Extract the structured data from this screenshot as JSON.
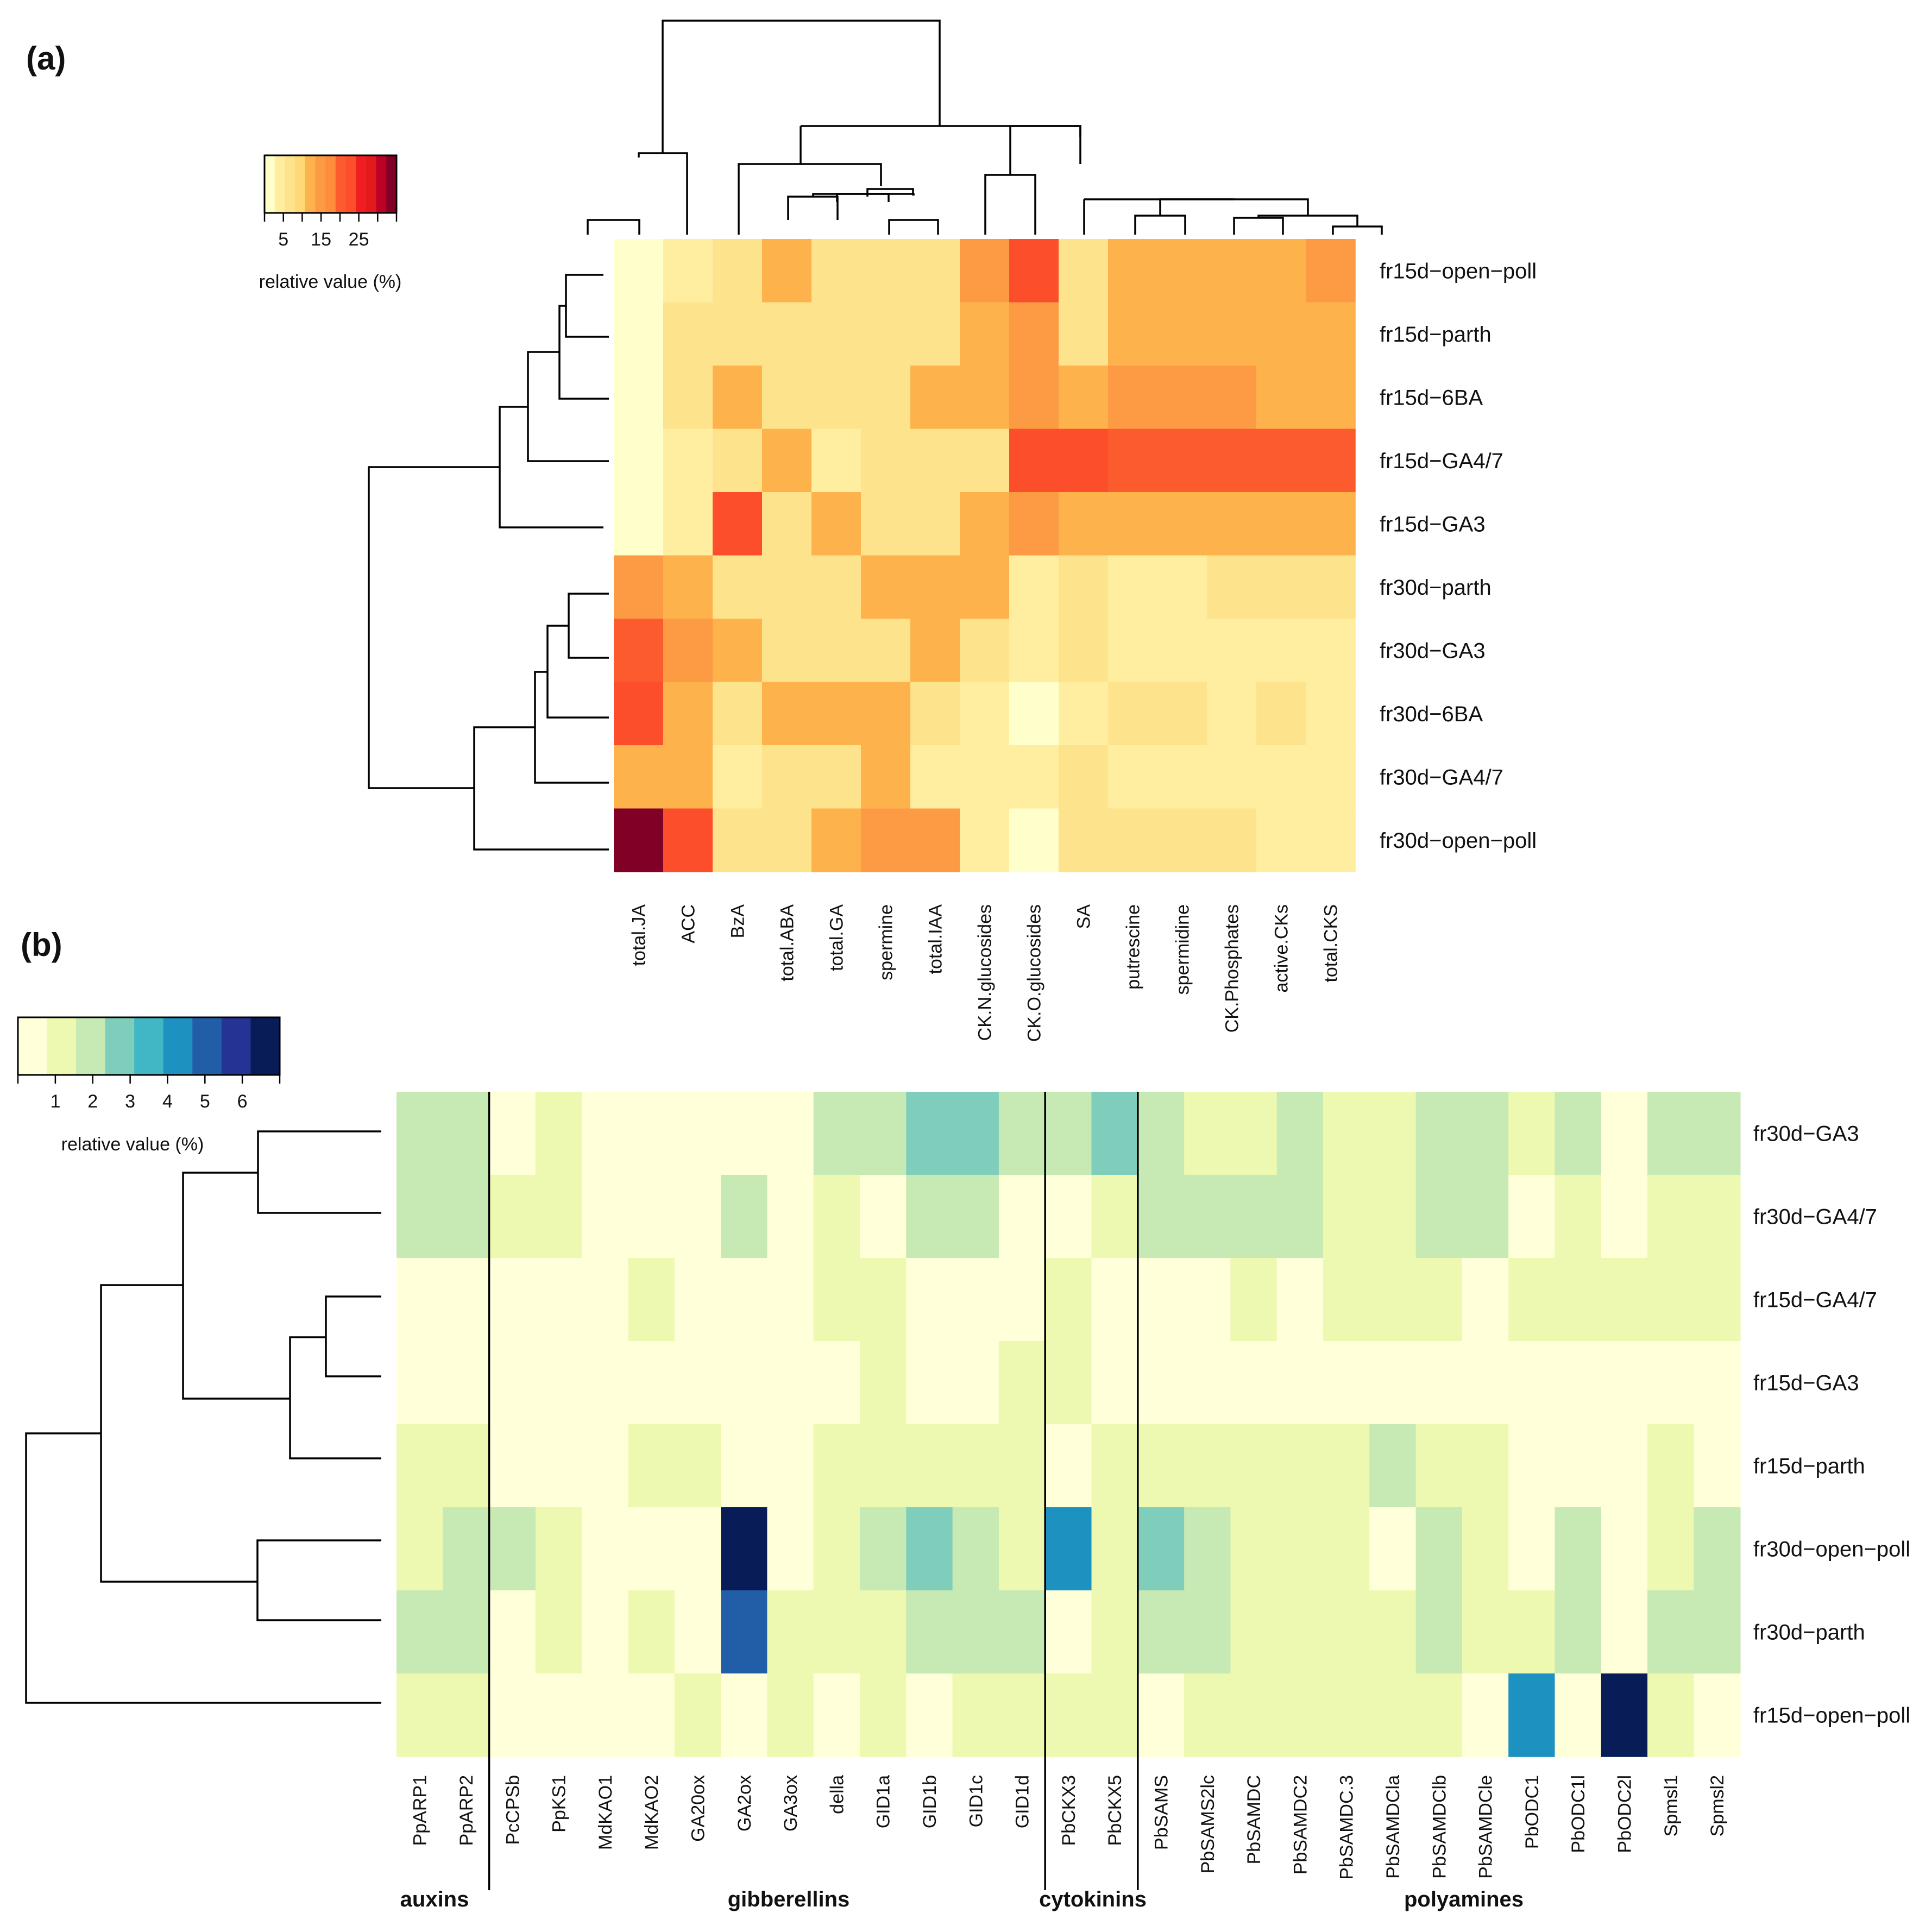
{
  "chart_data": [
    {
      "type": "heatmap",
      "panel_label": "(a)",
      "rows": [
        "fr15d−open−poll",
        "fr15d−parth",
        "fr15d−6BA",
        "fr15d−GA4/7",
        "fr15d−GA3",
        "fr30d−parth",
        "fr30d−GA3",
        "fr30d−6BA",
        "fr30d−GA4/7",
        "fr30d−open−poll"
      ],
      "columns": [
        "total.JA",
        "ACC",
        "BzA",
        "total.ABA",
        "total.GA",
        "spermine",
        "total.IAA",
        "CK.N.glucosides",
        "CK.O.glucosides",
        "SA",
        "putrescine",
        "spermidine",
        "CK.Phosphates",
        "active.CKs",
        "total.CKS"
      ],
      "values": [
        [
          1,
          5,
          8,
          12,
          8,
          8,
          8,
          16,
          22,
          8,
          12,
          12,
          12,
          12,
          16
        ],
        [
          1,
          8,
          8,
          8,
          8,
          8,
          8,
          12,
          16,
          8,
          12,
          12,
          12,
          12,
          12
        ],
        [
          1,
          8,
          12,
          8,
          8,
          8,
          12,
          12,
          16,
          12,
          16,
          16,
          16,
          12,
          12
        ],
        [
          1,
          5,
          8,
          12,
          3,
          8,
          8,
          8,
          22,
          22,
          19,
          19,
          19,
          19,
          19
        ],
        [
          1,
          5,
          24,
          8,
          12,
          8,
          8,
          12,
          16,
          12,
          12,
          12,
          12,
          12,
          12
        ],
        [
          16,
          12,
          8,
          8,
          8,
          12,
          12,
          12,
          5,
          8,
          5,
          5,
          8,
          8,
          8
        ],
        [
          19,
          16,
          12,
          8,
          8,
          8,
          12,
          8,
          5,
          8,
          5,
          5,
          5,
          5,
          5
        ],
        [
          24,
          12,
          8,
          12,
          12,
          12,
          8,
          5,
          1,
          5,
          8,
          8,
          5,
          8,
          5
        ],
        [
          12,
          12,
          5,
          8,
          8,
          12,
          5,
          5,
          5,
          8,
          5,
          5,
          5,
          5,
          5
        ],
        [
          33,
          22,
          8,
          8,
          12,
          16,
          16,
          5,
          1,
          8,
          8,
          8,
          8,
          5,
          5
        ]
      ],
      "legend": {
        "title": "relative value (%)",
        "ticks": [
          "5",
          "15",
          "25"
        ],
        "tick_values": [
          5,
          15,
          25
        ],
        "range": [
          0,
          35
        ]
      },
      "colors": [
        "#ffffcc",
        "#ffeda0",
        "#fee38d",
        "#fed976",
        "#feb24c",
        "#fd9a44",
        "#fd8d3c",
        "#fc5b2e",
        "#fc4e2a",
        "#f01e20",
        "#e31a1c",
        "#bd0026",
        "#800026"
      ]
    },
    {
      "type": "heatmap",
      "panel_label": "(b)",
      "rows": [
        "fr30d−GA3",
        "fr30d−GA4/7",
        "fr15d−GA4/7",
        "fr15d−GA3",
        "fr15d−parth",
        "fr30d−open−poll",
        "fr30d−parth",
        "fr15d−open−poll"
      ],
      "columns": [
        "PpARP1",
        "PpARP2",
        "PcCPSb",
        "PpKS1",
        "MdKAO1",
        "MdKAO2",
        "GA20ox",
        "GA2ox",
        "GA3ox",
        "della",
        "GID1a",
        "GID1b",
        "GID1c",
        "GID1d",
        "PbCKX3",
        "PbCKX5",
        "PbSAMS",
        "PbSAMS2lc",
        "PbSAMDC",
        "PbSAMDC2",
        "PbSAMDC.3",
        "PbSAMDCla",
        "PbSAMDClb",
        "PbSAMDCle",
        "PbODC1",
        "PbODC1l",
        "PbODC2l",
        "Spmsl1",
        "Spmsl2"
      ],
      "values": [
        [
          2,
          2,
          0.5,
          1,
          0.5,
          0.5,
          0.5,
          0.5,
          0.5,
          2,
          2,
          3,
          3,
          2,
          2,
          3,
          2,
          1,
          1,
          2,
          1,
          1,
          2,
          2,
          1,
          2,
          0.5,
          2,
          2
        ],
        [
          2,
          2,
          1,
          1,
          0.5,
          0.5,
          0.5,
          2,
          0.5,
          1,
          0.5,
          2,
          2,
          0.5,
          0.5,
          1,
          2,
          2,
          2,
          2,
          1,
          1,
          2,
          2,
          0.5,
          1,
          0.5,
          1,
          1
        ],
        [
          0.5,
          0.5,
          0.5,
          0.5,
          0.5,
          1,
          0.5,
          0.5,
          0.5,
          1,
          1,
          0.5,
          0.5,
          0.5,
          1,
          0.5,
          0.5,
          0.5,
          1,
          0.5,
          1,
          1,
          1,
          0.5,
          1,
          1,
          1,
          1,
          1
        ],
        [
          0.5,
          0.5,
          0.5,
          0.5,
          0.5,
          0.5,
          0.5,
          0.5,
          0.5,
          0.5,
          1,
          0.5,
          0.5,
          1,
          1,
          0.5,
          0.5,
          0.5,
          0.5,
          0.5,
          0.5,
          0.5,
          0.5,
          0.5,
          0.5,
          0.5,
          0.5,
          0.5,
          0.5
        ],
        [
          1,
          1,
          0.5,
          0.5,
          0.5,
          1,
          1,
          0.5,
          0.5,
          1,
          1,
          1,
          1,
          1,
          0.5,
          1,
          1,
          1,
          1,
          1,
          1,
          2,
          1,
          1,
          0.5,
          0.5,
          0.5,
          1,
          0.5
        ],
        [
          1,
          2,
          2,
          1,
          0.5,
          0.5,
          0.5,
          7,
          0.5,
          1,
          2,
          3,
          2,
          1,
          4,
          1,
          3,
          2,
          1,
          1,
          1,
          0.5,
          2,
          1,
          0.5,
          2,
          0.5,
          1,
          2
        ],
        [
          2,
          2,
          0.5,
          1,
          0.5,
          1,
          0.5,
          5,
          1,
          1,
          1,
          2,
          2,
          2,
          0.5,
          1,
          2,
          2,
          1,
          1,
          1,
          1,
          2,
          1,
          1,
          2,
          0.5,
          2,
          2
        ],
        [
          1,
          1,
          0.5,
          0.5,
          0.5,
          0.5,
          1,
          0.5,
          1,
          0.5,
          1,
          0.5,
          1,
          1,
          1,
          1,
          0.5,
          1,
          1,
          1,
          1,
          1,
          1,
          0.5,
          4,
          0.5,
          7,
          1,
          0.5
        ]
      ],
      "groups": [
        {
          "name": "auxins",
          "start": 0,
          "end": 1
        },
        {
          "name": "gibberellins",
          "start": 2,
          "end": 13
        },
        {
          "name": "cytokinins",
          "start": 14,
          "end": 15
        },
        {
          "name": "polyamines",
          "start": 16,
          "end": 28
        }
      ],
      "legend": {
        "title": "relative value (%)",
        "ticks": [
          "1",
          "2",
          "3",
          "4",
          "5",
          "6"
        ],
        "tick_values": [
          1,
          2,
          3,
          4,
          5,
          6
        ],
        "range": [
          0,
          7
        ]
      },
      "colors": [
        "#ffffd9",
        "#edf8b1",
        "#c7e9b4",
        "#7fcdbb",
        "#41b6c4",
        "#1d91c0",
        "#225ea8",
        "#253494",
        "#081d58"
      ]
    }
  ]
}
